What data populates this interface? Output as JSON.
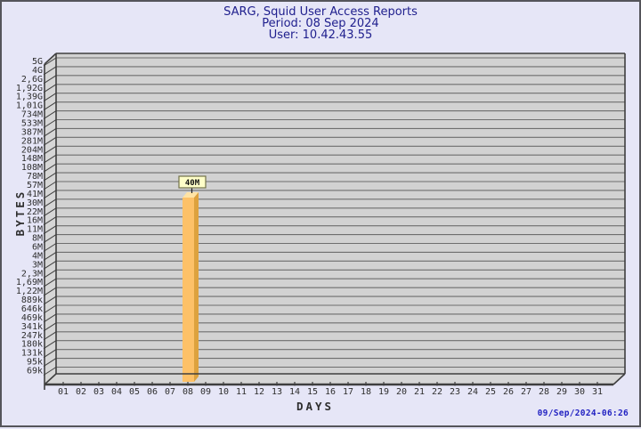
{
  "header": {
    "title": "SARG, Squid User Access Reports",
    "period_label": "Period: 08 Sep 2024",
    "user_label": "User: 10.42.43.55"
  },
  "chart_data": {
    "type": "bar",
    "title": "SARG, Squid User Access Reports",
    "period": "08 Sep 2024",
    "user": "10.42.43.55",
    "xlabel": "DAYS",
    "ylabel": "BYTES",
    "y_scale": "logarithmic-like custom byte ticks, top to bottom",
    "grid": true,
    "x_categories": [
      "01",
      "02",
      "03",
      "04",
      "05",
      "06",
      "07",
      "08",
      "09",
      "10",
      "11",
      "12",
      "13",
      "14",
      "15",
      "16",
      "17",
      "18",
      "19",
      "20",
      "21",
      "22",
      "23",
      "24",
      "25",
      "26",
      "27",
      "28",
      "29",
      "30",
      "31"
    ],
    "y_tick_labels": [
      "5G",
      "4G",
      "2,6G",
      "1,92G",
      "1,39G",
      "1,01G",
      "734M",
      "533M",
      "387M",
      "281M",
      "204M",
      "148M",
      "108M",
      "78M",
      "57M",
      "41M",
      "30M",
      "22M",
      "16M",
      "11M",
      "8M",
      "6M",
      "4M",
      "3M",
      "2,3M",
      "1,69M",
      "1,22M",
      "889k",
      "646k",
      "469k",
      "341k",
      "247k",
      "180k",
      "131k",
      "95k",
      "69k"
    ],
    "values": [
      0,
      0,
      0,
      0,
      0,
      0,
      0,
      40000000,
      0,
      0,
      0,
      0,
      0,
      0,
      0,
      0,
      0,
      0,
      0,
      0,
      0,
      0,
      0,
      0,
      0,
      0,
      0,
      0,
      0,
      0,
      0
    ],
    "bars": [
      {
        "day": "08",
        "value_label": "40M",
        "value_bytes": 40000000
      }
    ]
  },
  "footer": {
    "generated_at": "09/Sep/2024-06:26"
  },
  "colors": {
    "background": "#E6E6F7",
    "page_border": "#55555B",
    "plot_background": "#D2D2D2",
    "wall_background": "#D6D6D6",
    "grid_line": "#6E6E6E",
    "frame_line": "#3F3F3F",
    "bar_front": "#FDC168",
    "bar_side": "#DDA23E",
    "bar_top": "#FFE3A4",
    "bar_label_background": "#FEFEC8",
    "bar_label_border": "#73734A",
    "title_text": "#20208E",
    "timestamp_text": "#2222C2",
    "axis_text": "#2E2E2E"
  }
}
